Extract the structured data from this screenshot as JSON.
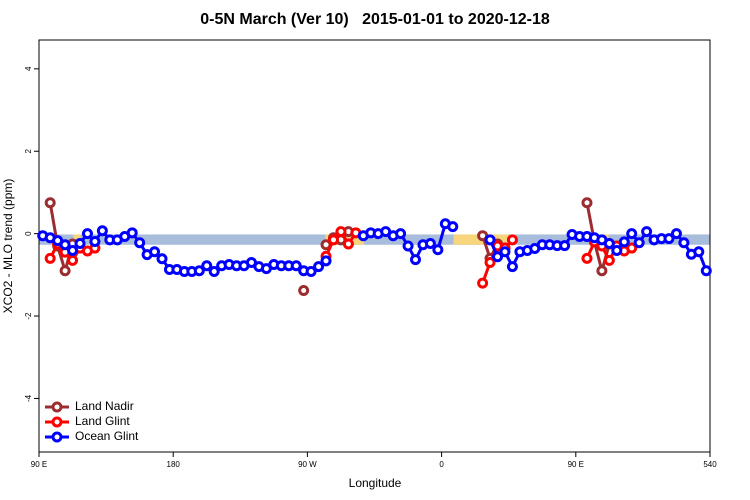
{
  "chart_data": {
    "type": "line",
    "title": "0-5N March (Ver 10)   2015-01-01 to 2020-12-18",
    "xlabel": "Longitude",
    "ylabel": "XCO2 - MLO trend (ppm)",
    "xlim": [
      90,
      540
    ],
    "ylim": [
      -5.3,
      4.7
    ],
    "xticks": [
      {
        "value": 90,
        "label": "90 E"
      },
      180,
      {
        "value": 270,
        "label": "90 W"
      },
      {
        "value": 360,
        "label": "0"
      },
      {
        "value": 450,
        "label": "90 E"
      },
      540
    ],
    "yticks": [
      -4,
      -2,
      0,
      2,
      4
    ],
    "legend": "bottom-left",
    "band": {
      "y": [
        -0.27,
        -0.02
      ],
      "color": "#a7bddb",
      "land_color": "#f7d57d",
      "land": [
        [
          113,
          118
        ],
        [
          282,
          308
        ],
        [
          368,
          405
        ],
        [
          468,
          472
        ]
      ]
    },
    "x": [
      92.5,
      97.5,
      102.5,
      107.5,
      112.5,
      117.5,
      122.5,
      127.5,
      132.5,
      137.5,
      142.5,
      147.5,
      152.5,
      157.5,
      162.5,
      167.5,
      172.5,
      177.5,
      182.5,
      187.5,
      192.5,
      197.5,
      202.5,
      207.5,
      212.5,
      217.5,
      222.5,
      227.5,
      232.5,
      237.5,
      242.5,
      247.5,
      252.5,
      257.5,
      262.5,
      267.5,
      272.5,
      277.5,
      282.5,
      287.5,
      292.5,
      297.5,
      302.5,
      307.5,
      312.5,
      317.5,
      322.5,
      327.5,
      332.5,
      337.5,
      342.5,
      347.5,
      352.5,
      357.5,
      362.5,
      367.5,
      372.5,
      377.5,
      382.5,
      387.5,
      392.5,
      397.5,
      402.5,
      407.5,
      412.5,
      417.5,
      422.5,
      427.5,
      432.5,
      437.5,
      442.5,
      447.5,
      452.5,
      457.5,
      462.5,
      467.5,
      472.5,
      477.5,
      482.5,
      487.5,
      492.5,
      497.5,
      502.5,
      507.5,
      512.5,
      517.5,
      522.5,
      527.5,
      532.5,
      537.5
    ],
    "series": [
      {
        "name": "Land Nadir",
        "color": "#9b2d30",
        "values": [
          null,
          0.75,
          -0.3,
          -0.9,
          -0.25,
          -0.3,
          null,
          null,
          null,
          null,
          null,
          null,
          null,
          null,
          null,
          null,
          null,
          null,
          null,
          null,
          null,
          null,
          null,
          null,
          null,
          null,
          null,
          null,
          null,
          null,
          null,
          null,
          null,
          null,
          null,
          -1.38,
          null,
          null,
          -0.27,
          -0.1,
          -0.15,
          0.05,
          null,
          null,
          null,
          null,
          null,
          null,
          null,
          null,
          null,
          null,
          null,
          null,
          null,
          null,
          null,
          null,
          null,
          -0.05,
          -0.6,
          -0.25,
          -0.35,
          null,
          null,
          null,
          null,
          null,
          null,
          null,
          null,
          null,
          null,
          0.75,
          -0.2,
          -0.9,
          -0.25,
          -0.35,
          null,
          null,
          null,
          null,
          null,
          null,
          null,
          null,
          null,
          null,
          null,
          null
        ]
      },
      {
        "name": "Land Glint",
        "color": "#ff0000",
        "values": [
          null,
          -0.6,
          -0.25,
          -0.45,
          -0.65,
          -0.35,
          -0.42,
          -0.35,
          null,
          null,
          null,
          null,
          null,
          null,
          null,
          null,
          null,
          null,
          null,
          null,
          null,
          null,
          null,
          null,
          null,
          null,
          null,
          null,
          null,
          null,
          null,
          null,
          null,
          null,
          null,
          null,
          null,
          null,
          -0.55,
          -0.15,
          0.05,
          -0.25,
          0.02,
          null,
          null,
          null,
          null,
          null,
          null,
          null,
          null,
          null,
          null,
          null,
          null,
          null,
          null,
          null,
          null,
          -1.2,
          -0.7,
          -0.3,
          -0.35,
          -0.15,
          null,
          null,
          null,
          null,
          null,
          null,
          null,
          null,
          null,
          -0.6,
          -0.2,
          -0.3,
          -0.65,
          -0.3,
          -0.42,
          -0.35,
          null,
          null,
          null,
          null,
          null,
          null,
          null,
          null,
          null,
          null
        ]
      },
      {
        "name": "Ocean Glint",
        "color": "#0000ff",
        "values": [
          -0.05,
          -0.1,
          -0.17,
          -0.27,
          -0.41,
          -0.24,
          0,
          -0.19,
          0.07,
          -0.15,
          -0.15,
          -0.07,
          0.02,
          -0.22,
          -0.51,
          -0.44,
          -0.61,
          -0.87,
          -0.87,
          -0.92,
          -0.92,
          -0.9,
          -0.78,
          -0.92,
          -0.78,
          -0.75,
          -0.78,
          -0.78,
          -0.7,
          -0.8,
          -0.85,
          -0.75,
          -0.78,
          -0.78,
          -0.78,
          -0.9,
          -0.92,
          -0.8,
          -0.66,
          null,
          null,
          null,
          null,
          -0.05,
          0.02,
          0,
          0.05,
          -0.05,
          0,
          -0.3,
          -0.63,
          -0.27,
          -0.24,
          -0.39,
          0.24,
          0.17,
          null,
          null,
          null,
          null,
          -0.15,
          -0.56,
          -0.44,
          -0.8,
          -0.44,
          -0.41,
          -0.36,
          -0.27,
          -0.27,
          -0.29,
          -0.29,
          -0.02,
          -0.07,
          -0.07,
          -0.1,
          -0.15,
          -0.24,
          -0.41,
          -0.2,
          0,
          -0.22,
          0.05,
          -0.15,
          -0.12,
          -0.12,
          0,
          -0.22,
          -0.5,
          -0.44,
          -0.9
        ]
      }
    ]
  }
}
